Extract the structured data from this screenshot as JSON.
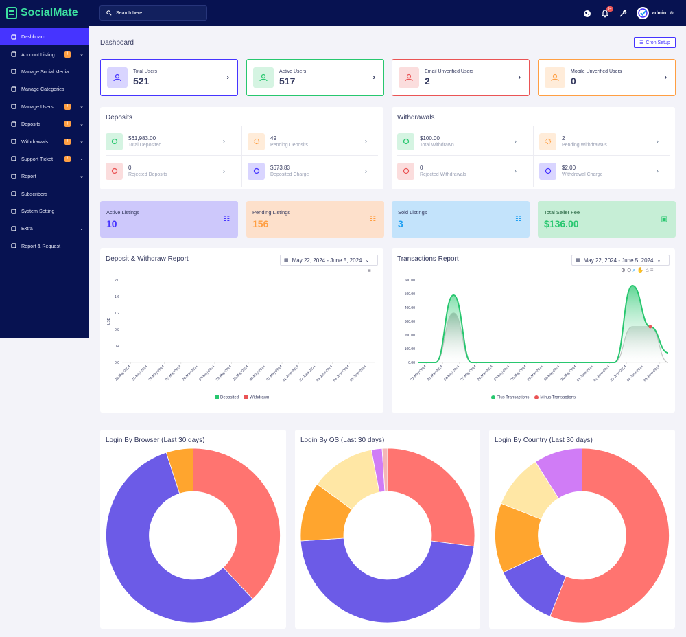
{
  "brand": {
    "name": "SocialMate",
    "accent": "#3ce0a0"
  },
  "sidebar": {
    "items": [
      {
        "label": "Dashboard",
        "icon": "home-icon",
        "active": true,
        "badge": "",
        "chevron": false
      },
      {
        "label": "Account Listing",
        "icon": "store-icon",
        "badge": "!",
        "chevron": true
      },
      {
        "label": "Manage Social Media",
        "icon": "gear-icon",
        "badge": "",
        "chevron": false
      },
      {
        "label": "Manage Categories",
        "icon": "box-icon",
        "badge": "",
        "chevron": false
      },
      {
        "label": "Manage Users",
        "icon": "users-icon",
        "badge": "!",
        "chevron": true
      },
      {
        "label": "Deposits",
        "icon": "file-invoice-icon",
        "badge": "!",
        "chevron": true
      },
      {
        "label": "Withdrawals",
        "icon": "bank-icon",
        "badge": "!",
        "chevron": true
      },
      {
        "label": "Support Ticket",
        "icon": "ticket-icon",
        "badge": "!",
        "chevron": true
      },
      {
        "label": "Report",
        "icon": "list-icon",
        "badge": "",
        "chevron": true
      },
      {
        "label": "Subscribers",
        "icon": "thumbs-up-icon",
        "badge": "",
        "chevron": false
      },
      {
        "label": "System Setting",
        "icon": "cog-icon",
        "badge": "",
        "chevron": false
      },
      {
        "label": "Extra",
        "icon": "server-icon",
        "badge": "",
        "chevron": true
      },
      {
        "label": "Report & Request",
        "icon": "bug-icon",
        "badge": "",
        "chevron": false
      }
    ]
  },
  "topbar": {
    "search_placeholder": "Search here...",
    "notif_count": "9+",
    "user": "admin"
  },
  "page": {
    "title": "Dashboard",
    "cron_label": "Cron Setup"
  },
  "stats": [
    {
      "label": "Total Users",
      "value": "521",
      "color": "#4634ff",
      "bg": "#d9d5ff"
    },
    {
      "label": "Active Users",
      "value": "517",
      "color": "#28c76f",
      "bg": "#d5f4e2"
    },
    {
      "label": "Email Unverified Users",
      "value": "2",
      "color": "#ea5455",
      "bg": "#fbdddd"
    },
    {
      "label": "Mobile Unverified Users",
      "value": "0",
      "color": "#ff9f43",
      "bg": "#ffecd9"
    }
  ],
  "deposits": {
    "title": "Deposits",
    "items": [
      {
        "value": "$61,983.00",
        "label": "Total Deposited",
        "color": "#28c76f",
        "bg": "#d5f4e2"
      },
      {
        "value": "49",
        "label": "Pending Deposits",
        "color": "#ff9f43",
        "bg": "#ffecd9"
      },
      {
        "value": "0",
        "label": "Rejected Deposits",
        "color": "#ea5455",
        "bg": "#fbdddd"
      },
      {
        "value": "$673.83",
        "label": "Deposited Charge",
        "color": "#4634ff",
        "bg": "#d9d5ff"
      }
    ]
  },
  "withdrawals": {
    "title": "Withdrawals",
    "items": [
      {
        "value": "$100.00",
        "label": "Total Withdrawn",
        "color": "#28c76f",
        "bg": "#d5f4e2"
      },
      {
        "value": "2",
        "label": "Pending Withdrawals",
        "color": "#ff9f43",
        "bg": "#ffecd9"
      },
      {
        "value": "0",
        "label": "Rejected Withdrawals",
        "color": "#ea5455",
        "bg": "#fbdddd"
      },
      {
        "value": "$2.00",
        "label": "Withdrawal Charge",
        "color": "#4634ff",
        "bg": "#d9d5ff"
      }
    ]
  },
  "listings": [
    {
      "label": "Active Listings",
      "value": "10",
      "bg": "#cdc8fb",
      "color": "#4634ff"
    },
    {
      "label": "Pending Listings",
      "value": "156",
      "bg": "#fde0cb",
      "color": "#ff9f43"
    },
    {
      "label": "Sold Listings",
      "value": "3",
      "bg": "#c3e3fb",
      "color": "#1e9ff2"
    },
    {
      "label": "Total Seller Fee",
      "value": "$136.00",
      "bg": "#c6eed6",
      "color": "#28c76f"
    }
  ],
  "date_range": "May 22, 2024 - June 5, 2024",
  "chart_data": [
    {
      "type": "bar",
      "title": "Deposit & Withdraw Report",
      "ylabel": "USD",
      "ylim": [
        0,
        2
      ],
      "yticks": [
        "0.0",
        "0.4",
        "0.8",
        "1.2",
        "1.6",
        "2.0"
      ],
      "categories": [
        "22-May-2024",
        "23-May-2024",
        "24-May-2024",
        "25-May-2024",
        "26-May-2024",
        "27-May-2024",
        "28-May-2024",
        "29-May-2024",
        "30-May-2024",
        "31-May-2024",
        "01-June-2024",
        "02-June-2024",
        "03-June-2024",
        "04-June-2024",
        "05-June-2024"
      ],
      "series": [
        {
          "name": "Deposited",
          "color": "#28c76f",
          "values": [
            0,
            0,
            0,
            0,
            0,
            0,
            0,
            0,
            0,
            0,
            0,
            0,
            0,
            0,
            0
          ]
        },
        {
          "name": "Withdrawn",
          "color": "#ea5455",
          "values": [
            0,
            0,
            0,
            0,
            0,
            0,
            0,
            0,
            0,
            0,
            0,
            0,
            0,
            0,
            0
          ]
        }
      ],
      "legend": "bottom"
    },
    {
      "type": "area",
      "title": "Transactions Report",
      "ylim": [
        0,
        600
      ],
      "yticks": [
        "0.00",
        "100.00",
        "200.00",
        "300.00",
        "400.00",
        "500.00",
        "600.00"
      ],
      "categories": [
        "22-May-2024",
        "23-May-2024",
        "24-May-2024",
        "25-May-2024",
        "26-May-2024",
        "27-May-2024",
        "28-May-2024",
        "29-May-2024",
        "30-May-2024",
        "31-May-2024",
        "01-June-2024",
        "02-June-2024",
        "03-June-2024",
        "04-June-2024",
        "05-June-2024"
      ],
      "series": [
        {
          "name": "Plus Transactions",
          "color": "#28c76f",
          "values": [
            0,
            0,
            490,
            0,
            0,
            0,
            0,
            0,
            0,
            0,
            0,
            0,
            560,
            260,
            70
          ]
        },
        {
          "name": "Minus Transactions",
          "color": "#ea5455",
          "values": [
            0,
            0,
            360,
            0,
            0,
            0,
            0,
            0,
            0,
            0,
            0,
            0,
            260,
            260,
            0
          ]
        }
      ],
      "legend": "bottom"
    },
    {
      "type": "pie",
      "title": "Login By Browser (Last 30 days)",
      "slices": [
        {
          "value": 38,
          "color": "#ff7470"
        },
        {
          "value": 57,
          "color": "#6c5be7"
        },
        {
          "value": 5,
          "color": "#ffa52e"
        }
      ]
    },
    {
      "type": "pie",
      "title": "Login By OS (Last 30 days)",
      "slices": [
        {
          "value": 27,
          "color": "#ff7470"
        },
        {
          "value": 47,
          "color": "#6c5be7"
        },
        {
          "value": 11,
          "color": "#ffa52e"
        },
        {
          "value": 12,
          "color": "#ffe7a5"
        },
        {
          "value": 2,
          "color": "#d07cf6"
        },
        {
          "value": 1,
          "color": "#f4b6b6"
        }
      ]
    },
    {
      "type": "pie",
      "title": "Login By Country (Last 30 days)",
      "slices": [
        {
          "value": 56,
          "color": "#ff7470"
        },
        {
          "value": 12,
          "color": "#6c5be7"
        },
        {
          "value": 13,
          "color": "#ffa52e"
        },
        {
          "value": 10,
          "color": "#ffe7a5"
        },
        {
          "value": 9,
          "color": "#d07cf6"
        }
      ]
    }
  ]
}
